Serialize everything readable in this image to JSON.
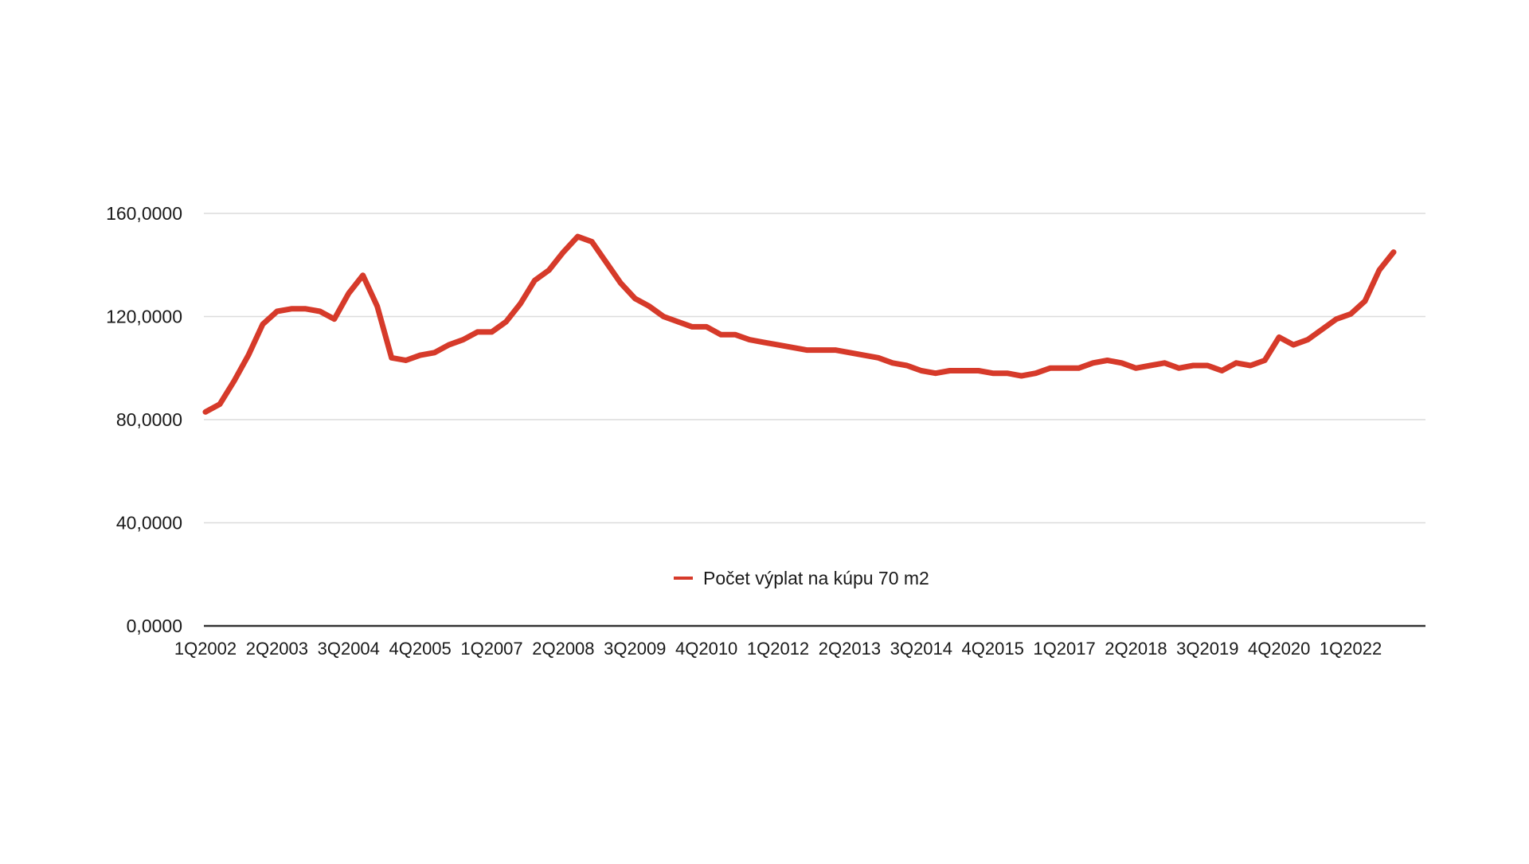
{
  "chart_data": {
    "type": "line",
    "title": "",
    "xlabel": "",
    "ylabel": "",
    "ylim": [
      0,
      160
    ],
    "y_ticks": [
      {
        "value": 0,
        "label": "0,0000"
      },
      {
        "value": 40,
        "label": "40,0000"
      },
      {
        "value": 80,
        "label": "80,0000"
      },
      {
        "value": 120,
        "label": "120,0000"
      },
      {
        "value": 160,
        "label": "160,0000"
      }
    ],
    "x_tick_labels": [
      "1Q2002",
      "2Q2003",
      "3Q2004",
      "4Q2005",
      "1Q2007",
      "2Q2008",
      "3Q2009",
      "4Q2010",
      "1Q2012",
      "2Q2013",
      "3Q2014",
      "4Q2015",
      "1Q2017",
      "2Q2018",
      "3Q2019",
      "4Q2020",
      "1Q2022"
    ],
    "grid": true,
    "legend_position": "bottom-center",
    "colors": {
      "series": "#d63a2a",
      "grid": "#dcdcdc",
      "axis": "#333333"
    },
    "series": [
      {
        "name": "Počet výplat na kúpu 70 m2",
        "x": [
          "1Q2002",
          "2Q2002",
          "3Q2002",
          "4Q2002",
          "1Q2003",
          "2Q2003",
          "3Q2003",
          "4Q2003",
          "1Q2004",
          "2Q2004",
          "3Q2004",
          "4Q2004",
          "1Q2005",
          "2Q2005",
          "3Q2005",
          "4Q2005",
          "1Q2006",
          "2Q2006",
          "3Q2006",
          "4Q2006",
          "1Q2007",
          "2Q2007",
          "3Q2007",
          "4Q2007",
          "1Q2008",
          "2Q2008",
          "3Q2008",
          "4Q2008",
          "1Q2009",
          "2Q2009",
          "3Q2009",
          "4Q2009",
          "1Q2010",
          "2Q2010",
          "3Q2010",
          "4Q2010",
          "1Q2011",
          "2Q2011",
          "3Q2011",
          "4Q2011",
          "1Q2012",
          "2Q2012",
          "3Q2012",
          "4Q2012",
          "1Q2013",
          "2Q2013",
          "3Q2013",
          "4Q2013",
          "1Q2014",
          "2Q2014",
          "3Q2014",
          "4Q2014",
          "1Q2015",
          "2Q2015",
          "3Q2015",
          "4Q2015",
          "1Q2016",
          "2Q2016",
          "3Q2016",
          "4Q2016",
          "1Q2017",
          "2Q2017",
          "3Q2017",
          "4Q2017",
          "1Q2018",
          "2Q2018",
          "3Q2018",
          "4Q2018",
          "1Q2019",
          "2Q2019",
          "3Q2019",
          "4Q2019",
          "1Q2020",
          "2Q2020",
          "3Q2020",
          "4Q2020",
          "1Q2021",
          "2Q2021",
          "3Q2021",
          "4Q2021",
          "1Q2022",
          "2Q2022",
          "3Q2022",
          "4Q2022"
        ],
        "values": [
          83,
          86,
          95,
          105,
          117,
          122,
          123,
          123,
          122,
          119,
          129,
          136,
          124,
          104,
          103,
          105,
          106,
          109,
          111,
          114,
          114,
          118,
          125,
          134,
          138,
          145,
          151,
          149,
          141,
          133,
          127,
          124,
          120,
          118,
          116,
          116,
          113,
          113,
          111,
          110,
          109,
          108,
          107,
          107,
          107,
          106,
          105,
          104,
          102,
          101,
          99,
          98,
          99,
          99,
          99,
          98,
          98,
          97,
          98,
          100,
          100,
          100,
          102,
          103,
          102,
          100,
          101,
          102,
          100,
          101,
          101,
          99,
          102,
          101,
          103,
          112,
          109,
          111,
          115,
          119,
          121,
          126,
          138,
          145
        ]
      }
    ]
  }
}
